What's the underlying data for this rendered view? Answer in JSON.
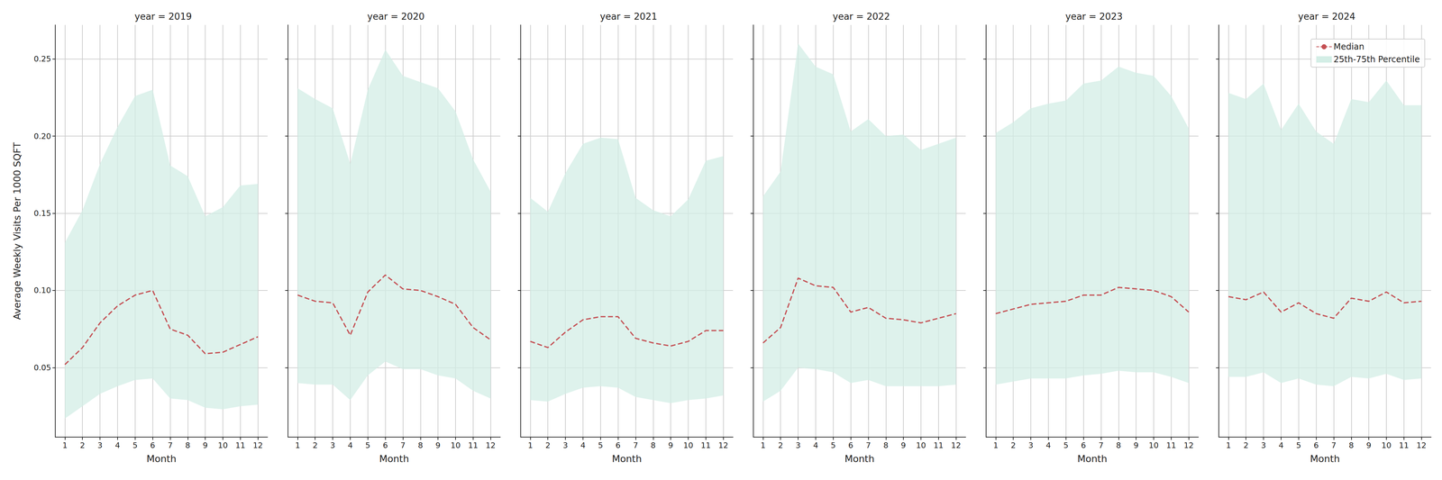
{
  "chart_data": [
    {
      "type": "line",
      "title": "year = 2019",
      "xlabel": "Month",
      "ylabel": "Average Weekly Visits Per 1000 SQFT",
      "x": [
        1,
        2,
        3,
        4,
        5,
        6,
        7,
        8,
        9,
        10,
        11,
        12
      ],
      "xlim": [
        0.45,
        12.55
      ],
      "xticks": [
        1,
        2,
        3,
        4,
        5,
        6,
        7,
        8,
        9,
        10,
        11,
        12
      ],
      "ylim": [
        0.005,
        0.272
      ],
      "yticks": [
        0.05,
        {
          "value": 0.1,
          "label": "0.10"
        },
        0.15,
        {
          "value": 0.2,
          "label": "0.20"
        },
        0.25
      ],
      "grid": true,
      "series": [
        {
          "name": "Median",
          "type": "line",
          "line_style": "dashed",
          "color": "#c44e52",
          "values": [
            0.052,
            0.063,
            0.079,
            0.09,
            0.097,
            0.1,
            0.075,
            0.071,
            0.059,
            0.06,
            0.065,
            0.07
          ]
        },
        {
          "name": "25th-75th Percentile",
          "type": "band",
          "color": "#d3eee6",
          "lower": [
            0.017,
            0.025,
            0.033,
            0.038,
            0.042,
            0.043,
            0.03,
            0.029,
            0.024,
            0.023,
            0.025,
            0.026
          ],
          "upper": [
            0.131,
            0.152,
            0.182,
            0.206,
            0.226,
            0.23,
            0.181,
            0.174,
            0.148,
            0.154,
            0.168,
            0.169
          ]
        }
      ]
    },
    {
      "type": "line",
      "title": "year = 2020",
      "xlabel": "Month",
      "x": [
        1,
        2,
        3,
        4,
        5,
        6,
        7,
        8,
        9,
        10,
        11,
        12
      ],
      "xlim": [
        0.45,
        12.55
      ],
      "xticks": [
        1,
        2,
        3,
        4,
        5,
        6,
        7,
        8,
        9,
        10,
        11,
        12
      ],
      "ylim": [
        0.005,
        0.272
      ],
      "yticks": [
        0.05,
        {
          "value": 0.1,
          "label": "0.10"
        },
        0.15,
        {
          "value": 0.2,
          "label": "0.20"
        },
        0.25
      ],
      "grid": true,
      "tick_labels": "x",
      "series": [
        {
          "name": "Median",
          "type": "line",
          "line_style": "dashed",
          "color": "#c44e52",
          "values": [
            0.097,
            0.093,
            0.092,
            0.071,
            0.099,
            0.11,
            0.101,
            0.1,
            0.096,
            0.091,
            0.076,
            0.068
          ]
        },
        {
          "name": "25th-75th Percentile",
          "type": "band",
          "color": "#d3eee6",
          "lower": [
            0.04,
            0.039,
            0.039,
            0.029,
            0.045,
            0.054,
            0.049,
            0.049,
            0.045,
            0.043,
            0.035,
            0.03
          ],
          "upper": [
            0.231,
            0.224,
            0.218,
            0.182,
            0.23,
            0.256,
            0.239,
            0.235,
            0.231,
            0.216,
            0.185,
            0.164
          ]
        }
      ]
    },
    {
      "type": "line",
      "title": "year = 2021",
      "xlabel": "Month",
      "x": [
        1,
        2,
        3,
        4,
        5,
        6,
        7,
        8,
        9,
        10,
        11,
        12
      ],
      "xlim": [
        0.45,
        12.55
      ],
      "xticks": [
        1,
        2,
        3,
        4,
        5,
        6,
        7,
        8,
        9,
        10,
        11,
        12
      ],
      "ylim": [
        0.005,
        0.272
      ],
      "yticks": [
        0.05,
        {
          "value": 0.1,
          "label": "0.10"
        },
        0.15,
        {
          "value": 0.2,
          "label": "0.20"
        },
        0.25
      ],
      "grid": true,
      "tick_labels": "x",
      "series": [
        {
          "name": "Median",
          "type": "line",
          "line_style": "dashed",
          "color": "#c44e52",
          "values": [
            0.067,
            0.063,
            0.073,
            0.081,
            0.083,
            0.083,
            0.069,
            0.066,
            0.064,
            0.067,
            0.074,
            0.074
          ]
        },
        {
          "name": "25th-75th Percentile",
          "type": "band",
          "color": "#d3eee6",
          "lower": [
            0.029,
            0.028,
            0.033,
            0.037,
            0.038,
            0.037,
            0.031,
            0.029,
            0.027,
            0.029,
            0.03,
            0.032
          ],
          "upper": [
            0.16,
            0.151,
            0.176,
            0.195,
            0.199,
            0.198,
            0.16,
            0.152,
            0.148,
            0.159,
            0.184,
            0.187
          ]
        }
      ]
    },
    {
      "type": "line",
      "title": "year = 2022",
      "xlabel": "Month",
      "x": [
        1,
        2,
        3,
        4,
        5,
        6,
        7,
        8,
        9,
        10,
        11,
        12
      ],
      "xlim": [
        0.45,
        12.55
      ],
      "xticks": [
        1,
        2,
        3,
        4,
        5,
        6,
        7,
        8,
        9,
        10,
        11,
        12
      ],
      "ylim": [
        0.005,
        0.272
      ],
      "yticks": [
        0.05,
        {
          "value": 0.1,
          "label": "0.10"
        },
        0.15,
        {
          "value": 0.2,
          "label": "0.20"
        },
        0.25
      ],
      "grid": true,
      "tick_labels": "x",
      "series": [
        {
          "name": "Median",
          "type": "line",
          "line_style": "dashed",
          "color": "#c44e52",
          "values": [
            0.066,
            0.076,
            0.108,
            0.103,
            0.102,
            0.086,
            0.089,
            0.082,
            0.081,
            0.079,
            0.082,
            0.085
          ]
        },
        {
          "name": "25th-75th Percentile",
          "type": "band",
          "color": "#d3eee6",
          "lower": [
            0.028,
            0.035,
            0.05,
            0.049,
            0.047,
            0.04,
            0.042,
            0.038,
            0.038,
            0.038,
            0.038,
            0.039
          ],
          "upper": [
            0.161,
            0.177,
            0.26,
            0.245,
            0.24,
            0.203,
            0.211,
            0.2,
            0.201,
            0.191,
            0.195,
            0.199
          ]
        }
      ]
    },
    {
      "type": "line",
      "title": "year = 2023",
      "xlabel": "Month",
      "x": [
        1,
        2,
        3,
        4,
        5,
        6,
        7,
        8,
        9,
        10,
        11,
        12
      ],
      "xlim": [
        0.45,
        12.55
      ],
      "xticks": [
        1,
        2,
        3,
        4,
        5,
        6,
        7,
        8,
        9,
        10,
        11,
        12
      ],
      "ylim": [
        0.005,
        0.272
      ],
      "yticks": [
        0.05,
        {
          "value": 0.1,
          "label": "0.10"
        },
        0.15,
        {
          "value": 0.2,
          "label": "0.20"
        },
        0.25
      ],
      "grid": true,
      "tick_labels": "x",
      "series": [
        {
          "name": "Median",
          "type": "line",
          "line_style": "dashed",
          "color": "#c44e52",
          "values": [
            0.085,
            0.088,
            0.091,
            0.092,
            0.093,
            0.097,
            0.097,
            0.102,
            0.101,
            0.1,
            0.096,
            0.086
          ]
        },
        {
          "name": "25th-75th Percentile",
          "type": "band",
          "color": "#d3eee6",
          "lower": [
            0.039,
            0.041,
            0.043,
            0.043,
            0.043,
            0.045,
            0.046,
            0.048,
            0.047,
            0.047,
            0.044,
            0.04
          ],
          "upper": [
            0.202,
            0.209,
            0.218,
            0.221,
            0.223,
            0.234,
            0.236,
            0.245,
            0.241,
            0.239,
            0.226,
            0.205
          ]
        }
      ]
    },
    {
      "type": "line",
      "title": "year = 2024",
      "xlabel": "Month",
      "x": [
        1,
        2,
        3,
        4,
        5,
        6,
        7,
        8,
        9,
        10,
        11,
        12
      ],
      "xlim": [
        0.45,
        12.55
      ],
      "xticks": [
        1,
        2,
        3,
        4,
        5,
        6,
        7,
        8,
        9,
        10,
        11,
        12
      ],
      "ylim": [
        0.005,
        0.272
      ],
      "yticks": [
        0.05,
        {
          "value": 0.1,
          "label": "0.10"
        },
        0.15,
        {
          "value": 0.2,
          "label": "0.20"
        },
        0.25
      ],
      "grid": true,
      "tick_labels": "x",
      "legend": "upper right",
      "series": [
        {
          "name": "Median",
          "type": "line",
          "line_style": "dashed",
          "color": "#c44e52",
          "values": [
            0.096,
            0.094,
            0.099,
            0.086,
            0.092,
            0.085,
            0.082,
            0.095,
            0.093,
            0.099,
            0.092,
            0.093
          ]
        },
        {
          "name": "25th-75th Percentile",
          "type": "band",
          "color": "#d3eee6",
          "lower": [
            0.044,
            0.044,
            0.047,
            0.04,
            0.043,
            0.039,
            0.038,
            0.044,
            0.043,
            0.046,
            0.042,
            0.043
          ],
          "upper": [
            0.228,
            0.224,
            0.234,
            0.204,
            0.221,
            0.203,
            0.195,
            0.224,
            0.222,
            0.236,
            0.22,
            0.22
          ]
        }
      ]
    }
  ]
}
